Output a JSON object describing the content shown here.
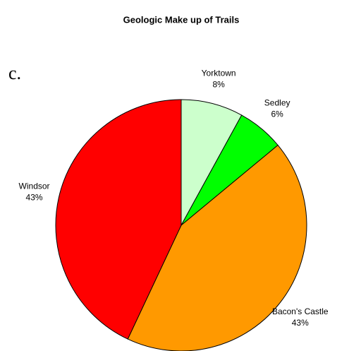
{
  "chart_data": {
    "type": "pie",
    "title": "Geologic Make up of Trails",
    "annotation": "c.",
    "categories": [
      "Yorktown",
      "Sedley",
      "Bacon's Castle",
      "Windsor"
    ],
    "values": [
      8,
      6,
      43,
      43
    ],
    "value_labels": [
      "8%",
      "6%",
      "43%",
      "43%"
    ],
    "colors": [
      "#ccffcc",
      "#00ff00",
      "#ff9900",
      "#ff0000"
    ]
  }
}
